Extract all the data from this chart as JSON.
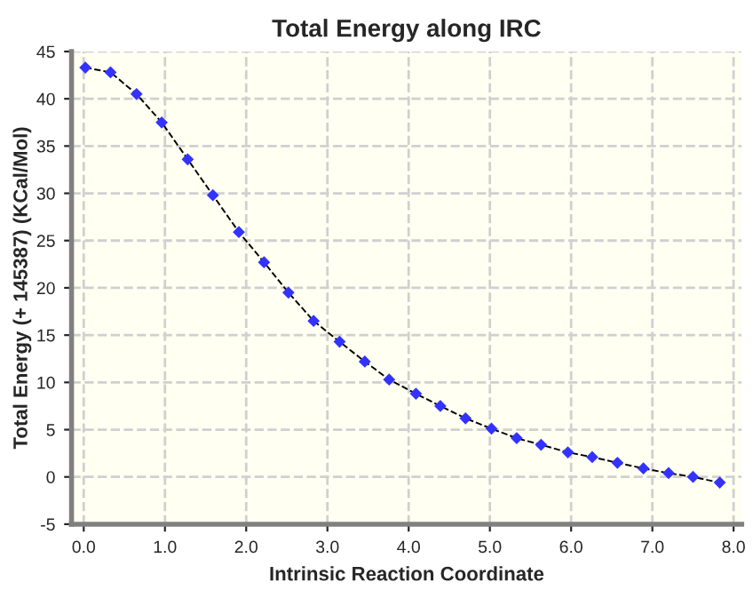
{
  "chart_data": {
    "type": "line",
    "title": "Total Energy along IRC",
    "xlabel": "Intrinsic Reaction Coordinate",
    "ylabel": "Total Energy (+ 145387) (KCal/Mol)",
    "x": [
      0.02,
      0.33,
      0.65,
      0.96,
      1.28,
      1.59,
      1.91,
      2.22,
      2.52,
      2.83,
      3.15,
      3.46,
      3.76,
      4.09,
      4.39,
      4.7,
      5.02,
      5.33,
      5.63,
      5.96,
      6.26,
      6.57,
      6.89,
      7.2,
      7.5,
      7.83
    ],
    "series": [
      {
        "color": "#3333ff",
        "values": [
          43.3,
          42.8,
          40.5,
          37.5,
          33.6,
          29.8,
          25.9,
          22.7,
          19.5,
          16.5,
          14.3,
          12.2,
          10.3,
          8.8,
          7.5,
          6.2,
          5.1,
          4.1,
          3.4,
          2.6,
          2.1,
          1.5,
          0.9,
          0.4,
          0.0,
          -0.6
        ]
      }
    ],
    "xlim": [
      -0.15,
      8.1
    ],
    "ylim": [
      -5,
      45
    ],
    "xticks": [
      {
        "value": 0,
        "label": "0.0"
      },
      {
        "value": 1,
        "label": "1.0"
      },
      {
        "value": 2,
        "label": "2.0"
      },
      {
        "value": 3,
        "label": "3.0"
      },
      {
        "value": 4,
        "label": "4.0"
      },
      {
        "value": 5,
        "label": "5.0"
      },
      {
        "value": 6,
        "label": "6.0"
      },
      {
        "value": 7,
        "label": "7.0"
      },
      {
        "value": 8,
        "label": "8.0"
      }
    ],
    "yticks": [
      -5,
      0,
      5,
      10,
      15,
      20,
      25,
      30,
      35,
      40,
      45
    ],
    "grid": true,
    "marker": "diamond",
    "line_style": "dashed"
  }
}
